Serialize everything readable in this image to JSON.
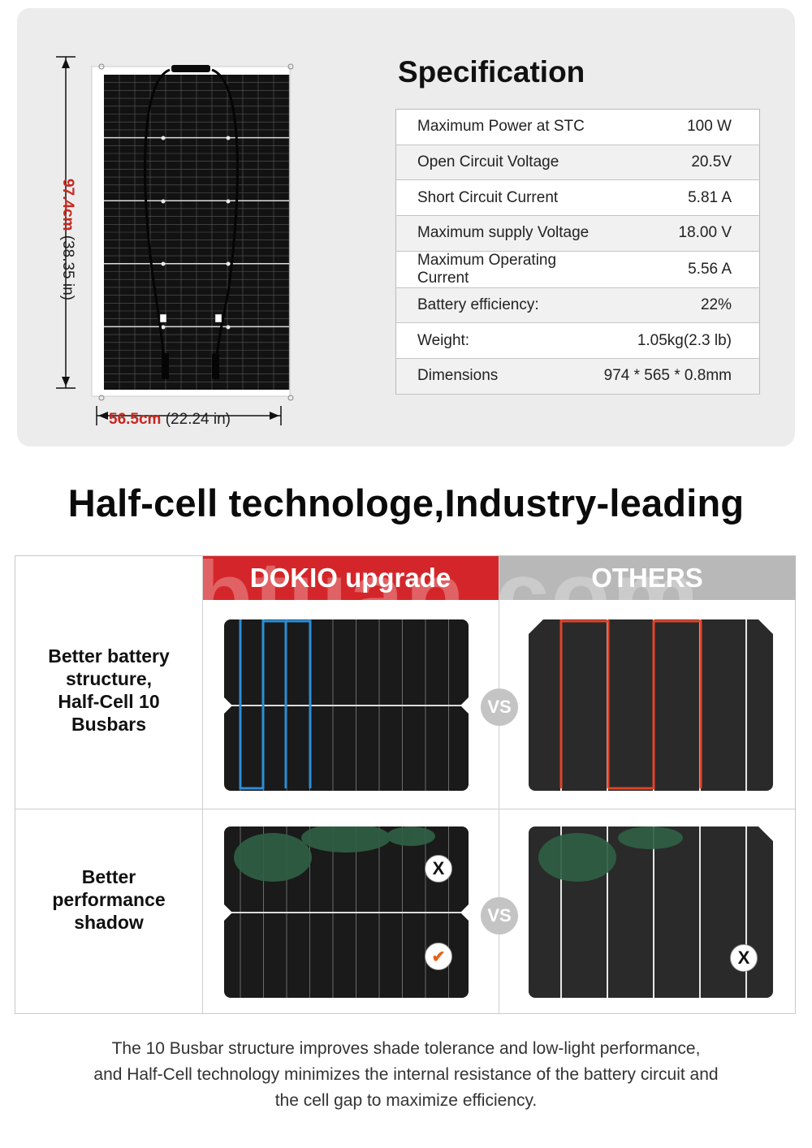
{
  "spec": {
    "title": "Specification",
    "rows": [
      {
        "label": "Maximum Power at STC",
        "value": "100 W"
      },
      {
        "label": "Open Circuit Voltage",
        "value": "20.5V"
      },
      {
        "label": "Short Circuit Current",
        "value": "5.81 A"
      },
      {
        "label": "Maximum supply Voltage",
        "value": "18.00 V"
      },
      {
        "label": "Maximum Operating Current",
        "value": "5.56 A"
      },
      {
        "label": "Battery efficiency:",
        "value": "22%"
      },
      {
        "label": "Weight:",
        "value": "1.05kg(2.3 lb)"
      },
      {
        "label": "Dimensions",
        "value": "974 * 565 * 0.8mm"
      }
    ]
  },
  "dimensions": {
    "height_metric": "97.4cm",
    "height_imperial": "(38.35 in)",
    "width_metric": "56.5cm",
    "width_imperial": "(22.24 in)"
  },
  "headline": "Half-cell technologe,Industry-leading",
  "compare": {
    "left_header": "DOKIO upgrade",
    "right_header": "OTHERS",
    "watermark": "vbtuan.com",
    "vs_label": "VS",
    "rows": [
      {
        "label_lines": [
          "Better battery",
          "structure,",
          "Half-Cell 10",
          "Busbars"
        ]
      },
      {
        "label_lines": [
          "Better",
          "performance",
          "shadow"
        ]
      }
    ],
    "marks": {
      "cross": "X",
      "check": "✔"
    }
  },
  "footer": {
    "lines": [
      "The 10 Busbar structure improves shade tolerance and low-light performance,",
      "and Half-Cell technology minimizes the internal resistance of the battery circuit and",
      "the cell gap to maximize efficiency."
    ]
  },
  "colors": {
    "brand_red": "#d4262a",
    "others_gray": "#b8b8b8",
    "highlight_blue": "#2b8fd8",
    "highlight_red": "#e0442a"
  }
}
